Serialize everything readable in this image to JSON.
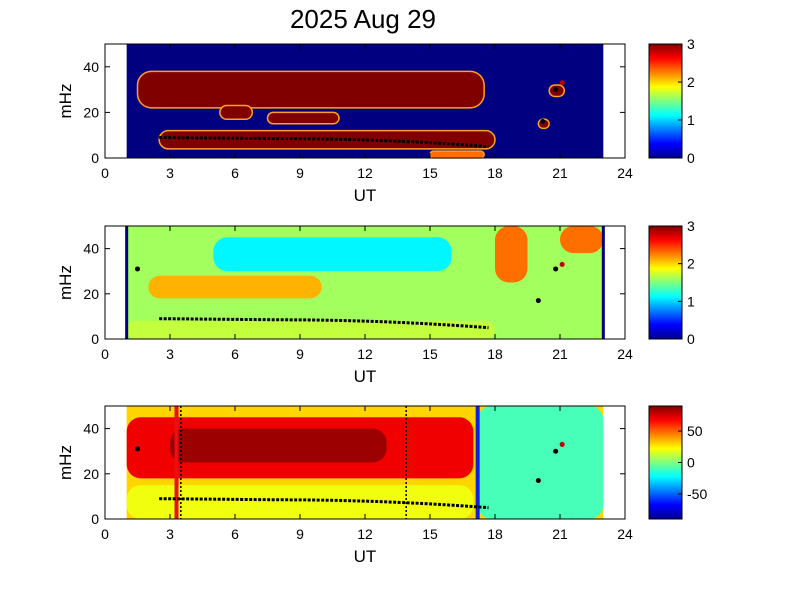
{
  "title": "2025 Aug 29",
  "chart_data": [
    {
      "type": "heatmap",
      "xlabel": "UT",
      "ylabel": "mHz",
      "xlim": [
        0,
        24
      ],
      "ylim": [
        0,
        50
      ],
      "xticks": [
        "0",
        "3",
        "6",
        "9",
        "12",
        "15",
        "18",
        "21",
        "24"
      ],
      "yticks": [
        "0",
        "20",
        "40"
      ],
      "data_range_ut": [
        1,
        23
      ],
      "colorbar": {
        "min": 0,
        "max": 3,
        "ticks": [
          "0",
          "1",
          "2",
          "3"
        ]
      },
      "background_value": 0,
      "bands": [
        {
          "ut": [
            1.5,
            17.5
          ],
          "mhz": [
            22,
            38
          ],
          "value": 3
        },
        {
          "ut": [
            5.3,
            6.8
          ],
          "mhz": [
            17,
            23
          ],
          "value": 3
        },
        {
          "ut": [
            7.5,
            10.8
          ],
          "mhz": [
            15,
            20
          ],
          "value": 3
        },
        {
          "ut": [
            2.5,
            18.0
          ],
          "mhz": [
            4,
            12
          ],
          "value": 3
        },
        {
          "ut": [
            15.0,
            17.5
          ],
          "mhz": [
            0,
            3
          ],
          "value": 2.3
        },
        {
          "ut": [
            20.5,
            21.2
          ],
          "mhz": [
            27,
            32
          ],
          "value": 3
        },
        {
          "ut": [
            20.0,
            20.5
          ],
          "mhz": [
            13,
            17
          ],
          "value": 3
        }
      ],
      "marker_track": {
        "start": [
          2.5,
          9
        ],
        "mid": [
          8,
          8.5
        ],
        "end": [
          17.7,
          5
        ],
        "extra_points": [
          [
            20.2,
            16
          ],
          [
            20.8,
            30
          ],
          [
            21.1,
            33
          ]
        ]
      }
    },
    {
      "type": "heatmap",
      "xlabel": "UT",
      "ylabel": "mHz",
      "xlim": [
        0,
        24
      ],
      "ylim": [
        0,
        50
      ],
      "xticks": [
        "0",
        "3",
        "6",
        "9",
        "12",
        "15",
        "18",
        "21",
        "24"
      ],
      "yticks": [
        "0",
        "20",
        "40"
      ],
      "data_range_ut": [
        1,
        23
      ],
      "colorbar": {
        "min": 0,
        "max": 3,
        "ticks": [
          "0",
          "1",
          "2",
          "3"
        ]
      },
      "background_value": 1.6,
      "bands": [
        {
          "ut": [
            5,
            16
          ],
          "mhz": [
            30,
            45
          ],
          "value": 1.1
        },
        {
          "ut": [
            2,
            10
          ],
          "mhz": [
            18,
            28
          ],
          "value": 2.1
        },
        {
          "ut": [
            1,
            18
          ],
          "mhz": [
            0,
            8
          ],
          "value": 1.7
        },
        {
          "ut": [
            18,
            19.5
          ],
          "mhz": [
            25,
            50
          ],
          "value": 2.3
        },
        {
          "ut": [
            21,
            23
          ],
          "mhz": [
            38,
            50
          ],
          "value": 2.3
        }
      ],
      "marker_track": {
        "start": [
          2.5,
          9
        ],
        "mid": [
          8,
          8.5
        ],
        "end": [
          17.7,
          5
        ],
        "extra_points": [
          [
            1.5,
            31
          ],
          [
            20,
            17
          ],
          [
            20.8,
            31
          ],
          [
            21.1,
            33
          ]
        ]
      },
      "boundary_lines": [
        1,
        23
      ]
    },
    {
      "type": "heatmap",
      "xlabel": "UT",
      "ylabel": "mHz",
      "xlim": [
        0,
        24
      ],
      "ylim": [
        0,
        50
      ],
      "xticks": [
        "0",
        "3",
        "6",
        "9",
        "12",
        "15",
        "18",
        "21",
        "24"
      ],
      "yticks": [
        "0",
        "20",
        "40"
      ],
      "data_range_ut": [
        1,
        23
      ],
      "colorbar": {
        "min": -90,
        "max": 90,
        "ticks": [
          "50",
          "0",
          "-50"
        ]
      },
      "background_value": 30,
      "bands": [
        {
          "ut": [
            1,
            17
          ],
          "mhz": [
            18,
            45
          ],
          "value": 70
        },
        {
          "ut": [
            3,
            13
          ],
          "mhz": [
            25,
            40
          ],
          "value": 85
        },
        {
          "ut": [
            17.2,
            23
          ],
          "mhz": [
            0,
            50
          ],
          "value": -10
        },
        {
          "ut": [
            1,
            17
          ],
          "mhz": [
            0,
            15
          ],
          "value": 20
        }
      ],
      "marker_track": {
        "start": [
          2.5,
          9
        ],
        "mid": [
          8,
          8.5
        ],
        "end": [
          17.7,
          5
        ],
        "extra_points": [
          [
            1.5,
            31
          ],
          [
            20,
            17
          ],
          [
            20.8,
            30
          ],
          [
            21.1,
            33
          ]
        ]
      },
      "vertical_lines": [
        {
          "ut": 3.3,
          "color": "#e81010",
          "style": "solid"
        },
        {
          "ut": 17.2,
          "color": "#1020e0",
          "style": "solid"
        },
        {
          "ut": 3.5,
          "color": "#000000",
          "style": "dotted"
        },
        {
          "ut": 13.9,
          "color": "#000000",
          "style": "dotted"
        }
      ]
    }
  ]
}
